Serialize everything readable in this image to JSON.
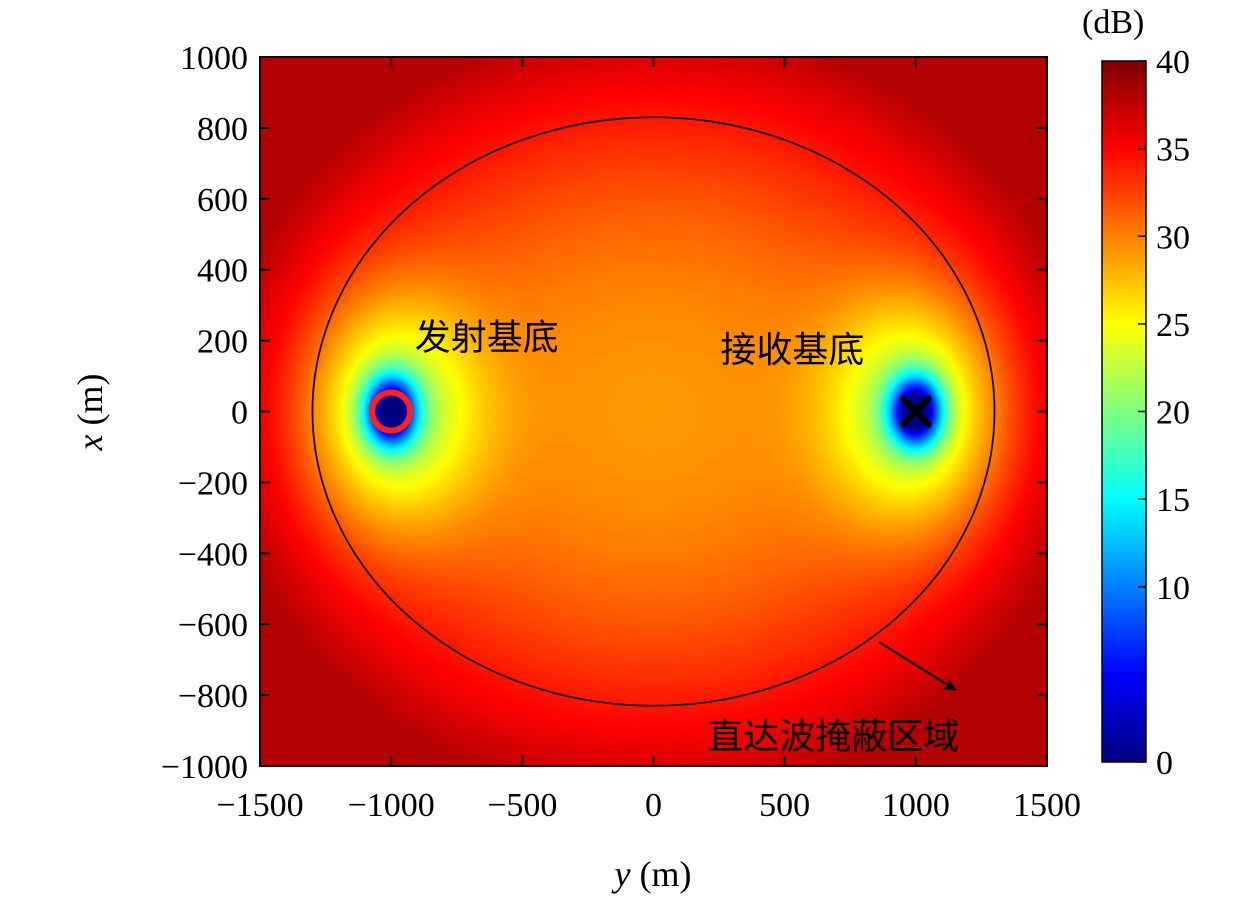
{
  "chart_data": {
    "type": "heatmap",
    "title": "",
    "xlabel_var": "y",
    "xlabel_unit": "(m)",
    "ylabel_var": "x",
    "ylabel_unit": "(m)",
    "xlim": [
      -1500,
      1500
    ],
    "ylim": [
      -1000,
      1000
    ],
    "x_ticks": [
      -1500,
      -1000,
      -500,
      0,
      500,
      1000,
      1500
    ],
    "x_tick_labels": [
      "−1500",
      "−1000",
      "−500",
      "0",
      "500",
      "1000",
      "1500"
    ],
    "y_ticks": [
      1000,
      800,
      600,
      400,
      200,
      0,
      -200,
      -400,
      -600,
      -800,
      -1000
    ],
    "y_tick_labels": [
      "1000",
      "800",
      "600",
      "400",
      "200",
      "0",
      "−200",
      "−400",
      "−600",
      "−800",
      "−1000"
    ],
    "colorbar": {
      "unit": "(dB)",
      "range": [
        0,
        40
      ],
      "ticks": [
        40,
        35,
        30,
        25,
        20,
        15,
        10,
        0
      ],
      "tick_labels": [
        "40",
        "35",
        "30",
        "25",
        "20",
        "15",
        "10",
        "0"
      ],
      "colormap": "jet"
    },
    "transmitter": {
      "label": "发射基底",
      "y": -1000,
      "x": 0,
      "marker": "red-circle"
    },
    "receiver": {
      "label": "接收基底",
      "y": 1000,
      "x": 0,
      "marker": "black-x"
    },
    "masked_region": {
      "label": "直达波掩蔽区域",
      "shape": "ellipse",
      "center": [
        0,
        0
      ],
      "semi_axis_y": 1300,
      "semi_axis_x": 830
    },
    "field": {
      "min_db": 0,
      "max_db": 40,
      "near_node_db": 0,
      "center_db": 29,
      "corner_db": 38
    }
  }
}
